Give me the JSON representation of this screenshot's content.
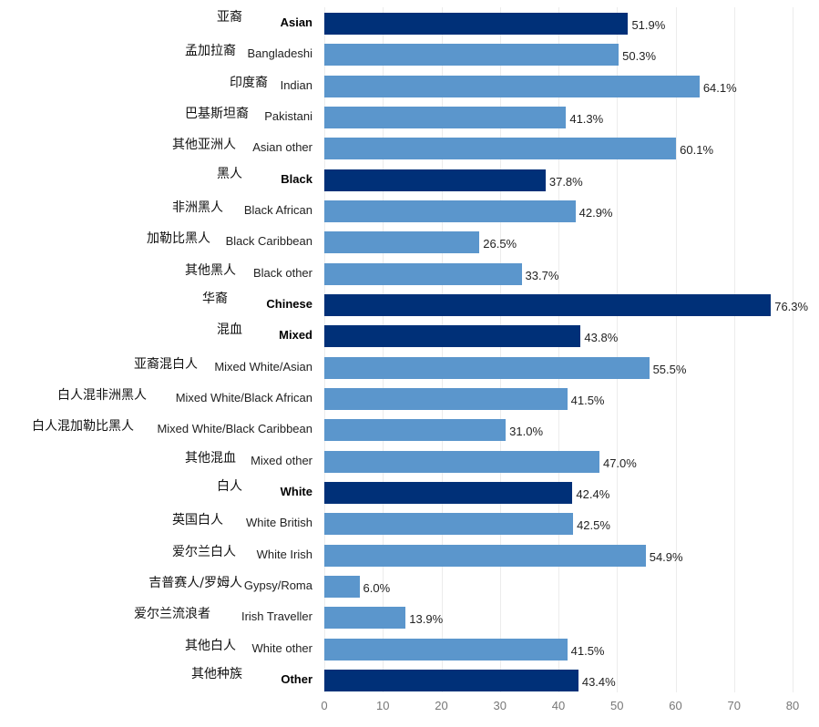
{
  "chart_data": {
    "type": "bar",
    "orientation": "horizontal",
    "title": "",
    "xlabel": "",
    "ylabel": "",
    "xlim": [
      0,
      80
    ],
    "x_ticks": [
      "0",
      "10",
      "20",
      "30",
      "40",
      "50",
      "60",
      "70",
      "80"
    ],
    "grid": true,
    "value_suffix": "%",
    "colors": {
      "group": "#003078",
      "sub": "#5b96cc"
    },
    "categories": [
      {
        "en": "Asian",
        "zh": "亚裔",
        "value": 51.9,
        "label": "51.9%",
        "group": true
      },
      {
        "en": "Bangladeshi",
        "zh": "孟加拉裔",
        "value": 50.3,
        "label": "50.3%",
        "group": false
      },
      {
        "en": "Indian",
        "zh": "印度裔",
        "value": 64.1,
        "label": "64.1%",
        "group": false
      },
      {
        "en": "Pakistani",
        "zh": "巴基斯坦裔",
        "value": 41.3,
        "label": "41.3%",
        "group": false
      },
      {
        "en": "Asian other",
        "zh": "其他亚洲人",
        "value": 60.1,
        "label": "60.1%",
        "group": false
      },
      {
        "en": "Black",
        "zh": "黑人",
        "value": 37.8,
        "label": "37.8%",
        "group": true
      },
      {
        "en": "Black African",
        "zh": "非洲黑人",
        "value": 42.9,
        "label": "42.9%",
        "group": false
      },
      {
        "en": "Black Caribbean",
        "zh": "加勒比黑人",
        "value": 26.5,
        "label": "26.5%",
        "group": false
      },
      {
        "en": "Black other",
        "zh": "其他黑人",
        "value": 33.7,
        "label": "33.7%",
        "group": false
      },
      {
        "en": "Chinese",
        "zh": "华裔",
        "value": 76.3,
        "label": "76.3%",
        "group": true
      },
      {
        "en": "Mixed",
        "zh": "混血",
        "value": 43.8,
        "label": "43.8%",
        "group": true
      },
      {
        "en": "Mixed White/Asian",
        "zh": "亚裔混白人",
        "value": 55.5,
        "label": "55.5%",
        "group": false
      },
      {
        "en": "Mixed White/Black African",
        "zh": "白人混非洲黑人",
        "value": 41.5,
        "label": "41.5%",
        "group": false
      },
      {
        "en": "Mixed White/Black Caribbean",
        "zh": "白人混加勒比黑人",
        "value": 31.0,
        "label": "31.0%",
        "group": false
      },
      {
        "en": "Mixed other",
        "zh": "其他混血",
        "value": 47.0,
        "label": "47.0%",
        "group": false
      },
      {
        "en": "White",
        "zh": "白人",
        "value": 42.4,
        "label": "42.4%",
        "group": true
      },
      {
        "en": "White British",
        "zh": "英国白人",
        "value": 42.5,
        "label": "42.5%",
        "group": false
      },
      {
        "en": "White Irish",
        "zh": "爱尔兰白人",
        "value": 54.9,
        "label": "54.9%",
        "group": false
      },
      {
        "en": "Gypsy/Roma",
        "zh": "吉普赛人/罗姆人",
        "value": 6.0,
        "label": "6.0%",
        "group": false
      },
      {
        "en": "Irish Traveller",
        "zh": "爱尔兰流浪者",
        "value": 13.9,
        "label": "13.9%",
        "group": false
      },
      {
        "en": "White other",
        "zh": "其他白人",
        "value": 41.5,
        "label": "41.5%",
        "group": false
      },
      {
        "en": "Other",
        "zh": "其他种族",
        "value": 43.4,
        "label": "43.4%",
        "group": true
      }
    ]
  }
}
